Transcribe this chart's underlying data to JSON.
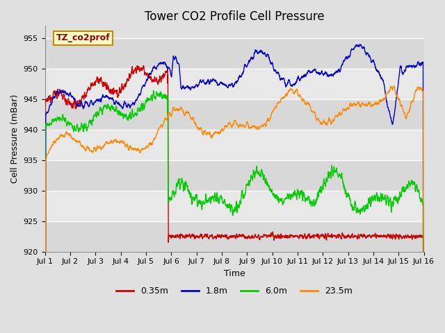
{
  "title": "Tower CO2 Profile Cell Pressure",
  "xlabel": "Time",
  "ylabel": "Cell Pressure (mBar)",
  "ylim": [
    920,
    957
  ],
  "yticks": [
    920,
    925,
    930,
    935,
    940,
    945,
    950,
    955
  ],
  "xlim": [
    0,
    15
  ],
  "xtick_labels": [
    "Jul 1",
    "Jul 2",
    "Jul 3",
    "Jul 4",
    "Jul 5",
    "Jul 6",
    "Jul 7",
    "Jul 8",
    "Jul 9",
    "Jul 10",
    "Jul 11",
    "Jul 12",
    "Jul 13",
    "Jul 14",
    "Jul 15",
    "Jul 16"
  ],
  "annotation_text": "TZ_co2prof",
  "annotation_box_facecolor": "#ffffcc",
  "annotation_box_edgecolor": "#cc8800",
  "fig_facecolor": "#e0e0e0",
  "band_colors": [
    "#d8d8d8",
    "#e8e8e8"
  ],
  "series": [
    {
      "label": "0.35m",
      "color": "#cc0000",
      "lw": 1.0
    },
    {
      "label": "1.8m",
      "color": "#0000cc",
      "lw": 1.0
    },
    {
      "label": "6.0m",
      "color": "#00cc00",
      "lw": 1.0
    },
    {
      "label": "23.5m",
      "color": "#ff8800",
      "lw": 1.0
    }
  ],
  "title_fontsize": 12,
  "tick_fontsize": 8,
  "label_fontsize": 9
}
